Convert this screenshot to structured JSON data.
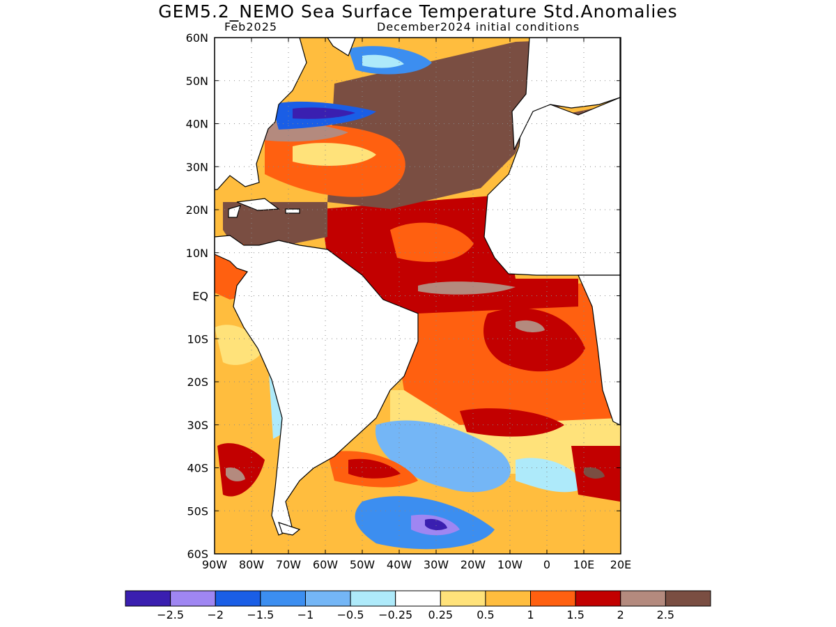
{
  "title": "GEM5.2_NEMO Sea Surface Temperature Std.Anomalies",
  "subtitle_left": "Feb2025",
  "subtitle_right": "December2024 initial conditions",
  "map": {
    "lon_labels": [
      "90W",
      "80W",
      "70W",
      "60W",
      "50W",
      "40W",
      "30W",
      "20W",
      "10W",
      "0",
      "10E",
      "20E"
    ],
    "lat_labels": [
      "60N",
      "50N",
      "40N",
      "30N",
      "20N",
      "10N",
      "EQ",
      "10S",
      "20S",
      "30S",
      "40S",
      "50S",
      "60S"
    ],
    "lon_range": [
      -90,
      20
    ],
    "lat_range": [
      -60,
      60
    ],
    "gridlines": "dotted"
  },
  "colorbar": {
    "colors": [
      "#3a1fb0",
      "#9f86f2",
      "#1a5ee6",
      "#3c8ef0",
      "#74b6f6",
      "#aeeafa",
      "#ffffff",
      "#ffe27a",
      "#ffbd3e",
      "#ff6010",
      "#c20000",
      "#b48a7e",
      "#7a4e42"
    ],
    "labels": [
      "−2.5",
      "−2",
      "−1.5",
      "−1",
      "−0.5",
      "−0.25",
      "0.25",
      "0.5",
      "1",
      "1.5",
      "2",
      "2.5"
    ]
  }
}
